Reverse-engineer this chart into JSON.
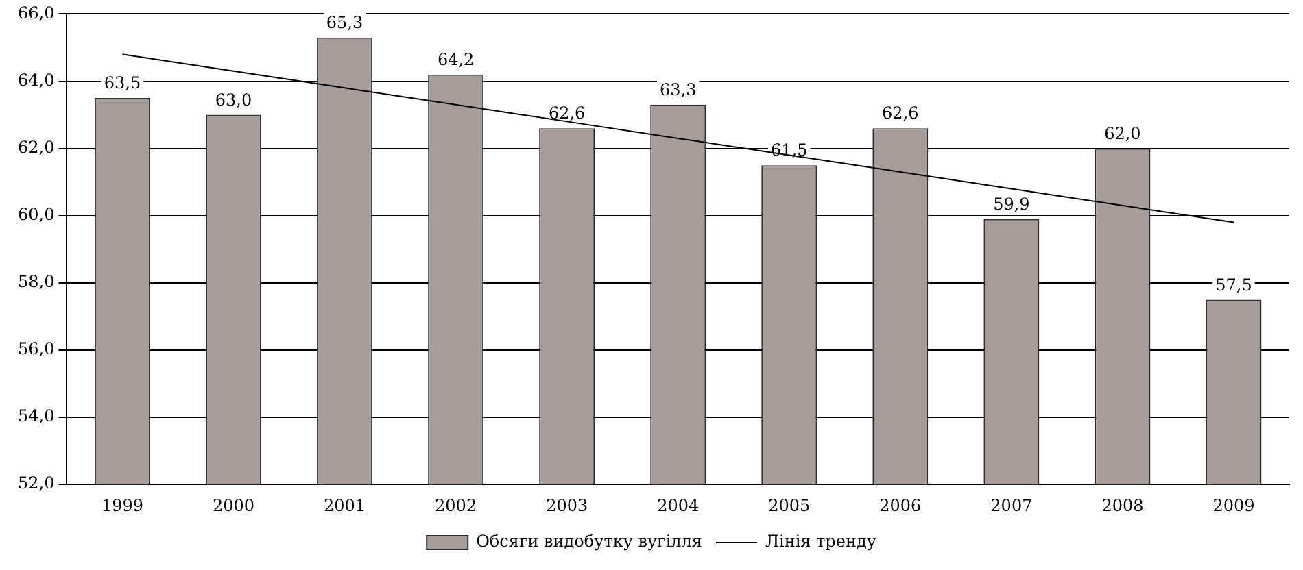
{
  "chart_data": {
    "type": "bar",
    "categories": [
      "1999",
      "2000",
      "2001",
      "2002",
      "2003",
      "2004",
      "2005",
      "2006",
      "2007",
      "2008",
      "2009"
    ],
    "series": [
      {
        "name": "Обсяги видобутку вугілля",
        "color": "#a69c9a",
        "values": [
          63.5,
          63.0,
          65.3,
          64.2,
          62.6,
          63.3,
          61.5,
          62.6,
          59.9,
          62.0,
          57.5
        ],
        "value_labels": [
          "63,5",
          "63,0",
          "65,3",
          "64,2",
          "62,6",
          "63,3",
          "61,5",
          "62,6",
          "59,9",
          "62,0",
          "57,5"
        ]
      },
      {
        "name": "Лінія тренду",
        "type": "line",
        "color": "#000000",
        "values": [
          64.8,
          64.3,
          63.8,
          63.3,
          62.8,
          62.3,
          61.8,
          61.3,
          60.8,
          60.3,
          59.8
        ]
      }
    ],
    "ylim": [
      52,
      66
    ],
    "yticks": [
      {
        "value": 52,
        "label": "52,0"
      },
      {
        "value": 54,
        "label": "54,0"
      },
      {
        "value": 56,
        "label": "56,0"
      },
      {
        "value": 58,
        "label": "58,0"
      },
      {
        "value": 60,
        "label": "60,0"
      },
      {
        "value": 62,
        "label": "62,0"
      },
      {
        "value": 64,
        "label": "64,0"
      },
      {
        "value": 66,
        "label": "66,0"
      }
    ],
    "grid": "y",
    "legend": "bottom",
    "marker": "none",
    "line_style": "solid"
  }
}
